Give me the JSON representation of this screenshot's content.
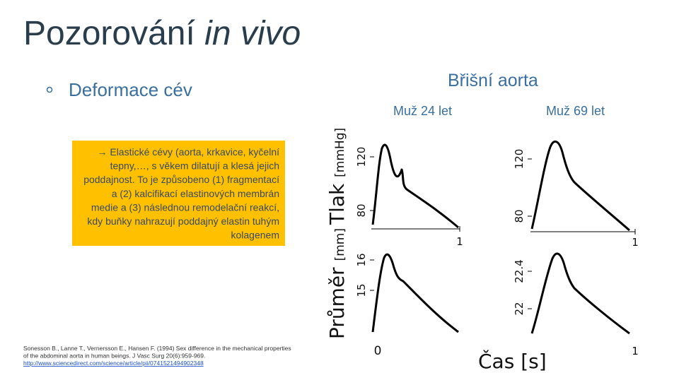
{
  "title": [
    "Pozorování",
    "in vivo"
  ],
  "bullet": "Deformace cév",
  "figure": {
    "heading": "Břišní aorta",
    "left_label": "Muž 24 let",
    "right_label": "Muž 69 let",
    "pressure_axis": {
      "name": "Tlak",
      "unit": "[mmHg]"
    },
    "diameter_axis": {
      "name": "Průměr",
      "unit": "[mm]"
    },
    "time_axis": {
      "name": "Čas",
      "unit": "[s]"
    },
    "left_pressure_ticks": [
      "120",
      "80"
    ],
    "left_time_tick": "1",
    "left_diameter_ticks": [
      "16",
      "15"
    ],
    "right_pressure_ticks": [
      "120",
      "80"
    ],
    "right_time_tick": "1",
    "right_diameter_ticks": [
      "22.4",
      "22"
    ],
    "time_ticks": [
      "0",
      "1"
    ]
  },
  "callout": [
    "→ Elastické cévy (aorta, krkavice, kyčelní",
    "tepny,…, s věkem dilatují a klesá jejich",
    "poddajnost. To je způsobeno (1) fragmentací",
    "a (2) kalcifikací elastinových membrán",
    "medie a (3) následnou remodelační reakcí,",
    "kdy buňky nahrazují poddajný elastin tuhým",
    "kolagenem"
  ],
  "reference": [
    "Sonesson B., Lanne T., Vernersson E., Hansen F. (1994) Sex difference in the mechanical properties",
    "of the abdominal aorta in human beings. J Vasc Surg 20(6):959-969.",
    "http://www.sciencedirect.com/science/article/pii/0741521494902348"
  ]
}
